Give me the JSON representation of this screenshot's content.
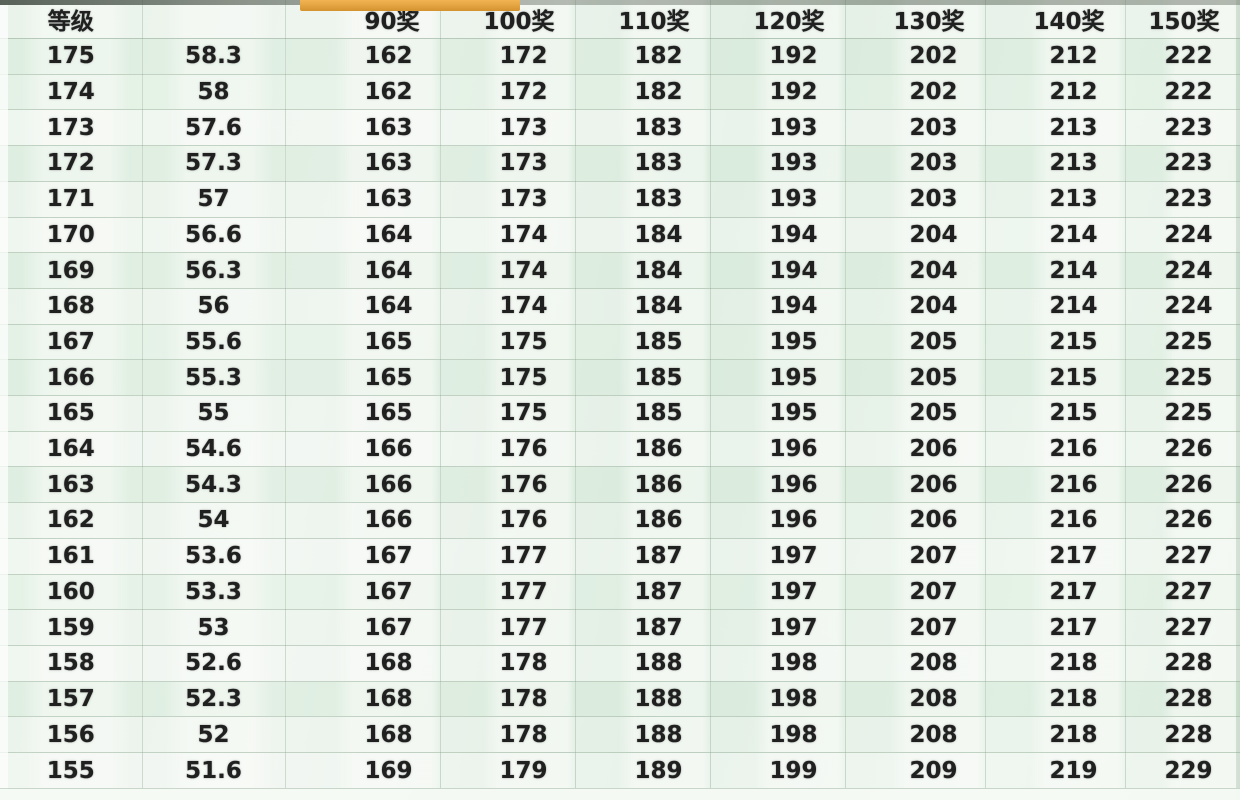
{
  "chart_data": {
    "type": "table",
    "columns": [
      "等级",
      "",
      "90奖",
      "100奖",
      "110奖",
      "120奖",
      "130奖",
      "140奖",
      "150奖"
    ],
    "rows": [
      [
        "175",
        "58.3",
        "162",
        "172",
        "182",
        "192",
        "202",
        "212",
        "222"
      ],
      [
        "174",
        "58",
        "162",
        "172",
        "182",
        "192",
        "202",
        "212",
        "222"
      ],
      [
        "173",
        "57.6",
        "163",
        "173",
        "183",
        "193",
        "203",
        "213",
        "223"
      ],
      [
        "172",
        "57.3",
        "163",
        "173",
        "183",
        "193",
        "203",
        "213",
        "223"
      ],
      [
        "171",
        "57",
        "163",
        "173",
        "183",
        "193",
        "203",
        "213",
        "223"
      ],
      [
        "170",
        "56.6",
        "164",
        "174",
        "184",
        "194",
        "204",
        "214",
        "224"
      ],
      [
        "169",
        "56.3",
        "164",
        "174",
        "184",
        "194",
        "204",
        "214",
        "224"
      ],
      [
        "168",
        "56",
        "164",
        "174",
        "184",
        "194",
        "204",
        "214",
        "224"
      ],
      [
        "167",
        "55.6",
        "165",
        "175",
        "185",
        "195",
        "205",
        "215",
        "225"
      ],
      [
        "166",
        "55.3",
        "165",
        "175",
        "185",
        "195",
        "205",
        "215",
        "225"
      ],
      [
        "165",
        "55",
        "165",
        "175",
        "185",
        "195",
        "205",
        "215",
        "225"
      ],
      [
        "164",
        "54.6",
        "166",
        "176",
        "186",
        "196",
        "206",
        "216",
        "226"
      ],
      [
        "163",
        "54.3",
        "166",
        "176",
        "186",
        "196",
        "206",
        "216",
        "226"
      ],
      [
        "162",
        "54",
        "166",
        "176",
        "186",
        "196",
        "206",
        "216",
        "226"
      ],
      [
        "161",
        "53.6",
        "167",
        "177",
        "187",
        "197",
        "207",
        "217",
        "227"
      ],
      [
        "160",
        "53.3",
        "167",
        "177",
        "187",
        "197",
        "207",
        "217",
        "227"
      ],
      [
        "159",
        "53",
        "167",
        "177",
        "187",
        "197",
        "207",
        "217",
        "227"
      ],
      [
        "158",
        "52.6",
        "168",
        "178",
        "188",
        "198",
        "208",
        "218",
        "228"
      ],
      [
        "157",
        "52.3",
        "168",
        "178",
        "188",
        "198",
        "208",
        "218",
        "228"
      ],
      [
        "156",
        "52",
        "168",
        "178",
        "188",
        "198",
        "208",
        "218",
        "228"
      ],
      [
        "155",
        "51.6",
        "169",
        "179",
        "189",
        "199",
        "209",
        "219",
        "229"
      ]
    ],
    "layout_hints": {
      "grid": true,
      "header_row": true,
      "numeric_columns_alignment": "right",
      "first_two_columns_alignment": "center"
    }
  },
  "colors": {
    "highlight_orange": "#e3a23e",
    "background_green": "#e9f3ea",
    "gridline": "#b7ccbb",
    "text": "#1e1f1e"
  }
}
